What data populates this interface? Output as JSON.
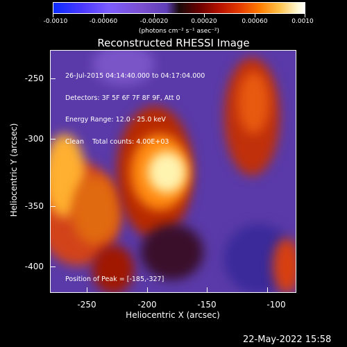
{
  "colorbar": {
    "tick_labels": [
      "-0.0010",
      "-0.00060",
      "-0.00020",
      "0.00020",
      "0.00060",
      "0.0010"
    ],
    "units": "(photons cm⁻² s⁻¹ asec⁻²)"
  },
  "title": "Reconstructed RHESSI Image",
  "info": {
    "time": "26-Jul-2015 04:14:40.000 to 04:17:04.000",
    "detectors": "Detectors: 3F 5F 6F 7F 8F 9F, Att 0",
    "energy": "Energy Range: 12.0 - 25.0 keV",
    "clean": "Clean    Total counts: 4.00E+03",
    "peak": "Position of Peak = [-185,-327]"
  },
  "xaxis": {
    "label": "Heliocentric X (arcsec)",
    "ticks": [
      "-250",
      "-200",
      "-150",
      "-100"
    ]
  },
  "yaxis": {
    "label": "Heliocentric Y (arcsec)",
    "ticks": [
      "-250",
      "-300",
      "-350",
      "-400"
    ]
  },
  "footer_date": "22-May-2022 15:58"
}
